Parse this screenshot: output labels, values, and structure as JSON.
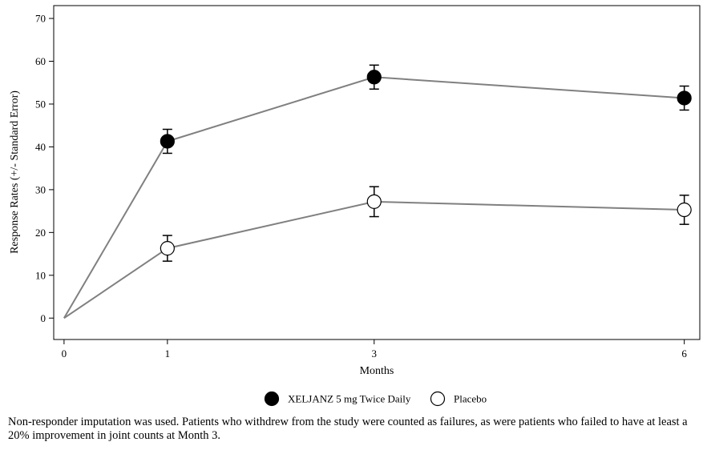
{
  "chart_data": {
    "type": "line",
    "xlabel": "Months",
    "ylabel": "Response Rates (+/- Standard Error)",
    "x_ticks": [
      0,
      1,
      3,
      6
    ],
    "y_ticks": [
      0,
      10,
      20,
      30,
      40,
      50,
      60,
      70
    ],
    "xlim": [
      -0.1,
      6.15
    ],
    "ylim": [
      -5,
      73
    ],
    "grid": false,
    "legend_position": "bottom-center",
    "series": [
      {
        "name": "XELJANZ 5 mg Twice Daily",
        "marker": "filled-circle",
        "marker_color": "#000000",
        "line_color": "#808080",
        "x": [
          0,
          1,
          3,
          6
        ],
        "y": [
          0,
          41.3,
          56.3,
          51.4
        ],
        "error": [
          null,
          2.8,
          2.8,
          2.8
        ]
      },
      {
        "name": "Placebo",
        "marker": "open-circle",
        "marker_color": "#ffffff",
        "line_color": "#808080",
        "x": [
          0,
          1,
          3,
          6
        ],
        "y": [
          0,
          16.3,
          27.2,
          25.3
        ],
        "error": [
          null,
          3.0,
          3.5,
          3.4
        ]
      }
    ]
  },
  "footnote": "Non-responder imputation was used. Patients who withdrew from the study were counted as failures, as were patients who failed to have at least a 20% improvement in joint counts at Month 3."
}
